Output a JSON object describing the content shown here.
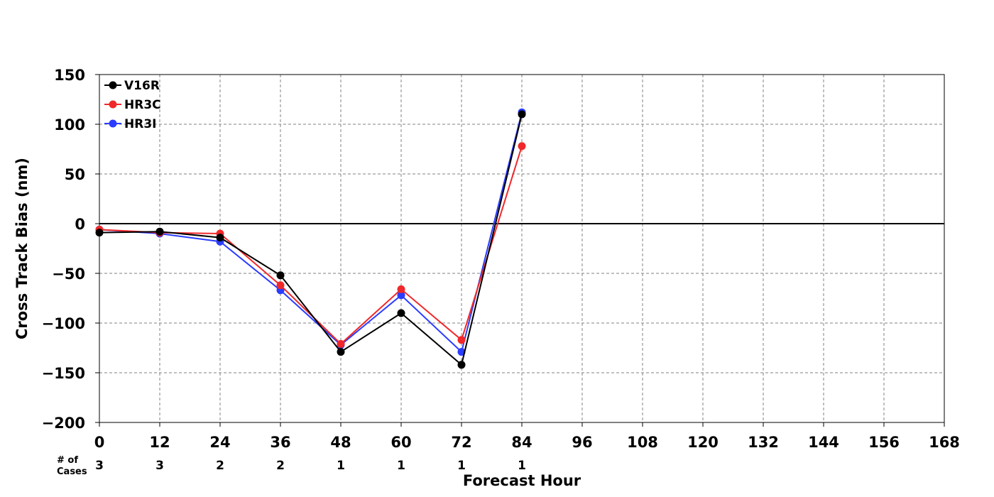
{
  "chart_data": {
    "type": "line",
    "xlabel": "Forecast Hour",
    "ylabel": "Cross Track Bias (nm)",
    "xlim": [
      0,
      168
    ],
    "ylim": [
      -200,
      150
    ],
    "xticks": [
      0,
      12,
      24,
      36,
      48,
      60,
      72,
      84,
      96,
      108,
      120,
      132,
      144,
      156,
      168
    ],
    "yticks": [
      150,
      100,
      50,
      0,
      -50,
      -100,
      -150,
      -200
    ],
    "ytick_labels": [
      "150",
      "100",
      "50",
      "0",
      "−50",
      "−100",
      "−150",
      "−200"
    ],
    "grid": true,
    "grid_style": "dashed",
    "zero_line": true,
    "legend_position": "top-left",
    "series": [
      {
        "name": "V16R",
        "color": "#000000",
        "x": [
          0,
          12,
          24,
          36,
          48,
          60,
          72,
          84
        ],
        "y": [
          -9,
          -8,
          -14,
          -52,
          -129,
          -90,
          -142,
          110
        ]
      },
      {
        "name": "HR3C",
        "color": "#f0282a",
        "x": [
          0,
          12,
          24,
          36,
          48,
          60,
          72,
          84
        ],
        "y": [
          -6,
          -9,
          -10,
          -62,
          -121,
          -66,
          -117,
          78
        ]
      },
      {
        "name": "HR3I",
        "color": "#2a3cff",
        "x": [
          0,
          12,
          24,
          36,
          48,
          60,
          72,
          84
        ],
        "y": [
          -6,
          -10,
          -18,
          -67,
          -122,
          -72,
          -129,
          112
        ]
      }
    ],
    "cases": {
      "header": [
        "# of",
        "Cases"
      ],
      "x": [
        0,
        12,
        24,
        36,
        48,
        60,
        72,
        84
      ],
      "values": [
        "3",
        "3",
        "2",
        "2",
        "1",
        "1",
        "1",
        "1"
      ]
    }
  }
}
